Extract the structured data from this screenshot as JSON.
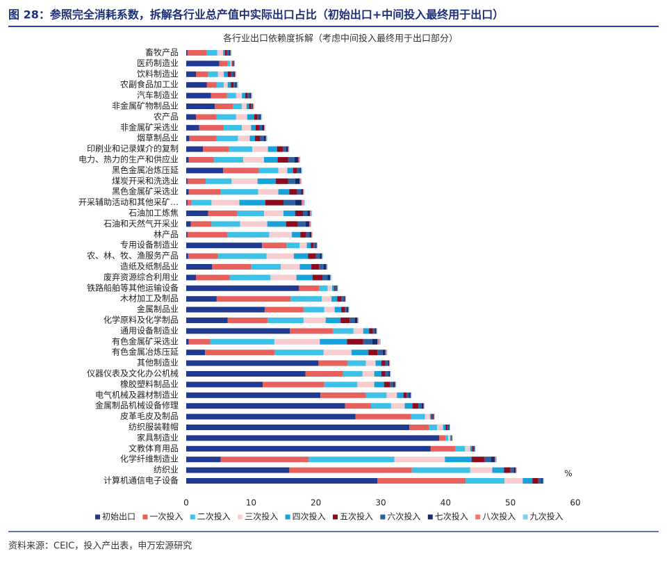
{
  "header": {
    "title": "图 28：参照完全消耗系数，拆解各行业总产值中实际出口占比（初始出口+中间投入最终用于出口）"
  },
  "chart_data": {
    "type": "bar",
    "orientation": "horizontal",
    "stacked": true,
    "title": "各行业出口依赖度拆解（考虑中间投入最终用于出口部分）",
    "x_unit": "%",
    "categories": [
      "畜牧产品",
      "医药制造业",
      "饮料制造业",
      "农副食品加工业",
      "汽车制造业",
      "非金属矿物制品业",
      "农产品",
      "非金属矿采选业",
      "烟草制品业",
      "印刷业和记录媒介的复制",
      "电力、热力的生产和供应业",
      "黑色金属冶炼压延",
      "煤炭开采和洗选业",
      "黑色金属矿采选业",
      "开采辅助活动和其他采矿…",
      "石油加工炼焦",
      "石油和天然气开采业",
      "林产品",
      "专用设备制造业",
      "农、林、牧、渔服务产品",
      "造纸及纸制品业",
      "废弃资源综合利用业",
      "铁路船舶等其他运输设备",
      "木材加工及制品",
      "金属制品业",
      "化学原料及化学制品",
      "通用设备制造业",
      "有色金属矿采选业",
      "有色金属冶炼压延",
      "其他制造业",
      "仪器仪表及文化办公机械",
      "橡胶塑料制品业",
      "电气机械及器材制造业",
      "金属制品机械设备修理",
      "皮革毛皮及制品",
      "纺织服装鞋帽",
      "家具制造业",
      "文教体育用品",
      "化学纤维制造业",
      "纺织业",
      "计算机通信电子设备"
    ],
    "series": [
      {
        "name": "初始出口",
        "color": "#1f3a8f",
        "values": [
          0.2,
          5.1,
          1.5,
          3.2,
          3.8,
          4.4,
          1.5,
          2.0,
          0.5,
          2.6,
          0.4,
          5.7,
          0.2,
          0.4,
          0.2,
          3.4,
          0.7,
          0.2,
          11.7,
          0.3,
          4.0,
          1.5,
          17.4,
          4.7,
          12.1,
          6.4,
          16.0,
          0.4,
          2.9,
          20.4,
          18.4,
          11.8,
          20.7,
          24.5,
          26.1,
          34.4,
          39.0,
          37.7,
          5.3,
          15.9,
          29.5
        ]
      },
      {
        "name": "一次投入",
        "color": "#e8605c",
        "values": [
          3.0,
          1.3,
          1.9,
          1.5,
          2.5,
          2.8,
          3.2,
          3.8,
          4.2,
          4.0,
          3.9,
          5.5,
          2.8,
          4.9,
          0.6,
          4.5,
          3.2,
          6.2,
          3.8,
          4.6,
          6.0,
          5.2,
          3.1,
          11.4,
          6.0,
          6.2,
          6.6,
          3.3,
          10.7,
          4.5,
          5.8,
          9.5,
          7.0,
          4.0,
          8.6,
          3.0,
          1.0,
          3.8,
          13.6,
          18.9,
          13.6
        ]
      },
      {
        "name": "二次投入",
        "color": "#3ec1e6",
        "values": [
          1.6,
          0.4,
          1.5,
          1.1,
          1.4,
          1.4,
          3.0,
          2.8,
          3.3,
          3.6,
          4.5,
          3.0,
          4.0,
          5.8,
          3.1,
          4.1,
          4.4,
          6.4,
          2.0,
          7.5,
          4.6,
          6.3,
          1.3,
          4.8,
          3.2,
          5.5,
          3.2,
          9.9,
          7.6,
          2.8,
          3.0,
          5.1,
          3.2,
          3.1,
          2.1,
          1.3,
          0.4,
          1.5,
          13.2,
          9.0,
          6.0
        ]
      },
      {
        "name": "三次投入",
        "color": "#f7cdd0",
        "values": [
          0.9,
          0.2,
          0.9,
          0.6,
          0.9,
          0.7,
          1.7,
          1.4,
          1.8,
          2.4,
          3.2,
          1.4,
          4.0,
          3.1,
          4.3,
          3.0,
          4.2,
          3.5,
          1.1,
          4.2,
          2.9,
          4.0,
          0.7,
          1.5,
          1.6,
          3.4,
          1.5,
          7.0,
          4.3,
          1.5,
          1.8,
          2.6,
          1.6,
          2.1,
          0.8,
          0.9,
          0.3,
          0.8,
          7.8,
          3.4,
          2.8
        ]
      },
      {
        "name": "四次投入",
        "color": "#17a2d9",
        "values": [
          0.3,
          0.1,
          0.6,
          0.5,
          0.5,
          0.4,
          1.1,
          0.7,
          0.8,
          1.4,
          2.1,
          0.9,
          2.8,
          1.7,
          4.0,
          1.8,
          2.9,
          1.3,
          0.6,
          2.2,
          1.8,
          2.5,
          0.3,
          0.9,
          1.0,
          2.3,
          0.9,
          4.2,
          2.6,
          0.9,
          1.1,
          1.5,
          1.0,
          1.2,
          0.2,
          0.4,
          0.1,
          0.3,
          4.1,
          1.8,
          1.5
        ]
      },
      {
        "name": "五次投入",
        "color": "#8c0b1c",
        "values": [
          0.3,
          0.1,
          0.5,
          0.4,
          0.4,
          0.3,
          0.5,
          0.6,
          0.8,
          0.9,
          1.6,
          0.6,
          1.9,
          1.2,
          2.8,
          1.2,
          1.8,
          0.9,
          0.4,
          1.2,
          1.2,
          1.5,
          0.2,
          0.6,
          0.6,
          1.4,
          0.6,
          2.5,
          1.4,
          0.6,
          0.6,
          0.9,
          0.5,
          0.9,
          0.2,
          0.3,
          0.1,
          0.2,
          2.0,
          1.0,
          0.9
        ]
      },
      {
        "name": "六次投入",
        "color": "#2e5f9e",
        "values": [
          0.3,
          0.1,
          0.4,
          0.3,
          0.3,
          0.2,
          0.3,
          0.4,
          0.6,
          0.5,
          1.0,
          0.4,
          1.1,
          0.6,
          1.8,
          0.7,
          1.2,
          0.5,
          0.3,
          0.6,
          0.7,
          0.8,
          0.2,
          0.4,
          0.3,
          0.8,
          0.3,
          1.4,
          0.8,
          0.4,
          0.5,
          0.5,
          0.4,
          0.5,
          0.1,
          0.2,
          0.05,
          0.1,
          1.0,
          0.5,
          0.5
        ]
      },
      {
        "name": "七次投入",
        "color": "#182968",
        "values": [
          0.2,
          0.1,
          0.2,
          0.2,
          0.2,
          0.1,
          0.2,
          0.3,
          0.3,
          0.3,
          0.6,
          0.2,
          0.7,
          0.3,
          1.0,
          0.4,
          0.6,
          0.3,
          0.2,
          0.3,
          0.4,
          0.4,
          0.1,
          0.2,
          0.2,
          0.4,
          0.2,
          0.8,
          0.4,
          0.2,
          0.2,
          0.3,
          0.2,
          0.3,
          0.1,
          0.1,
          0.05,
          0.1,
          0.6,
          0.3,
          0.2
        ]
      },
      {
        "name": "八次投入",
        "color": "#f07878",
        "values": [
          0.1,
          0.05,
          0.1,
          0.1,
          0.1,
          0.1,
          0.1,
          0.1,
          0.1,
          0.1,
          0.2,
          0.1,
          0.2,
          0.1,
          0.3,
          0.2,
          0.2,
          0.1,
          0.1,
          0.1,
          0.1,
          0.1,
          0.05,
          0.1,
          0.1,
          0.1,
          0.1,
          0.3,
          0.2,
          0.1,
          0.1,
          0.1,
          0.1,
          0.1,
          0.05,
          0.05,
          0.05,
          0.05,
          0.2,
          0.1,
          0.1
        ]
      },
      {
        "name": "九次投入",
        "color": "#7fd1ef",
        "values": [
          0.1,
          0.05,
          0.1,
          0.1,
          0.1,
          0.05,
          0.1,
          0.1,
          0.1,
          0.1,
          0.1,
          0.1,
          0.1,
          0.1,
          0.2,
          0.1,
          0.1,
          0.1,
          0.05,
          0.1,
          0.1,
          0.1,
          0.05,
          0.05,
          0.05,
          0.1,
          0.05,
          0.2,
          0.1,
          0.05,
          0.05,
          0.1,
          0.05,
          0.05,
          0.05,
          0.05,
          0.05,
          0.05,
          0.1,
          0.1,
          0.1
        ]
      }
    ],
    "xlim": [
      0,
      60
    ],
    "xticks": [
      0,
      10,
      20,
      30,
      40,
      50,
      60
    ],
    "grid": false,
    "legend": "bottom"
  },
  "footer": {
    "source": "资料来源：CEIC，投入产出表，申万宏源研究"
  }
}
